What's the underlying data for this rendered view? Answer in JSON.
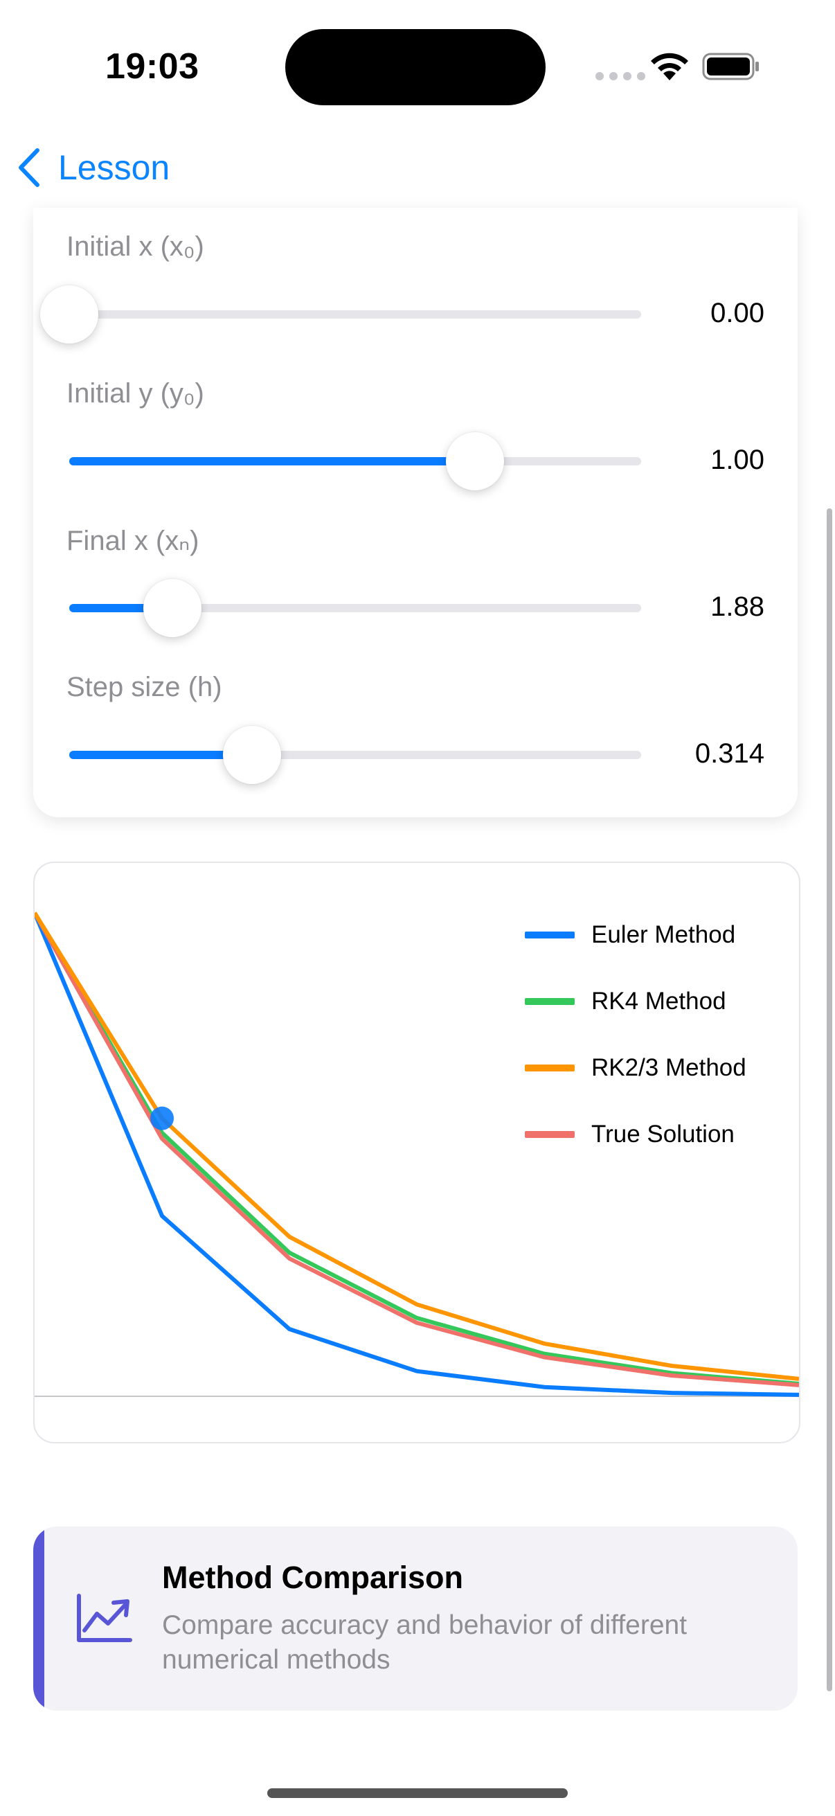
{
  "status_bar": {
    "time": "19:03"
  },
  "nav": {
    "back_label": "Lesson"
  },
  "controls": [
    {
      "label": "Initial x (x₀)",
      "value": "0.00",
      "fraction": 0.0
    },
    {
      "label": "Initial y (y₀)",
      "value": "1.00",
      "fraction": 0.71
    },
    {
      "label": "Final x (xₙ)",
      "value": "1.88",
      "fraction": 0.18
    },
    {
      "label": "Step size (h)",
      "value": "0.314",
      "fraction": 0.32
    }
  ],
  "chart_data": {
    "type": "line",
    "x": [
      0.0,
      0.314,
      0.628,
      0.942,
      1.256,
      1.57,
      1.884
    ],
    "ylim": [
      0,
      1
    ],
    "xlim": [
      0,
      1.884
    ],
    "grid": false,
    "legend_placement": "top-right",
    "series": [
      {
        "name": "Euler Method",
        "color": "#0a7cff",
        "values": [
          1.0,
          0.373,
          0.139,
          0.052,
          0.019,
          0.007,
          0.003
        ]
      },
      {
        "name": "RK4 Method",
        "color": "#34c759",
        "values": [
          1.0,
          0.545,
          0.297,
          0.162,
          0.088,
          0.048,
          0.026
        ]
      },
      {
        "name": "RK2/3 Method",
        "color": "#ff9500",
        "values": [
          1.0,
          0.575,
          0.33,
          0.19,
          0.109,
          0.063,
          0.036
        ]
      },
      {
        "name": "True Solution",
        "color": "#f0706a",
        "values": [
          1.0,
          0.533,
          0.285,
          0.152,
          0.081,
          0.043,
          0.023
        ]
      }
    ],
    "highlight_point": {
      "x": 0.314,
      "y": 0.575,
      "color": "#0a7cff"
    }
  },
  "info_card": {
    "title": "Method Comparison",
    "subtitle": "Compare accuracy and behavior of different numerical methods",
    "icon": "chart-line-uptrend-icon",
    "accent_color": "#5856d6"
  }
}
